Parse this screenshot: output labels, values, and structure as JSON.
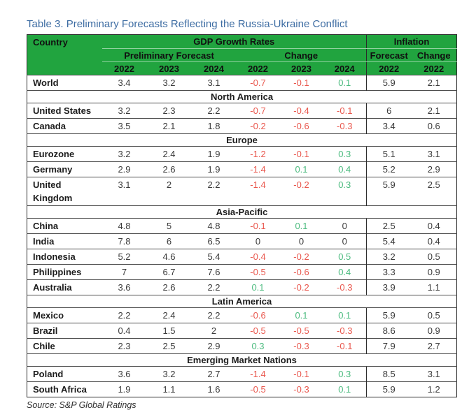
{
  "title": "Table 3. Preliminary Forecasts Reflecting the Russia-Ukraine Conflict",
  "source_note": "Source: S&P Global Ratings",
  "colors": {
    "header_bg": "#21A43F",
    "positive_value": "#4CBB7F",
    "negative_value": "#E9574D",
    "title_text": "#3E6DA3",
    "table_border": "#2b2b2b"
  },
  "table": {
    "header": {
      "country": "Country",
      "gdp_group": "GDP Growth Rates",
      "inflation_group": "Inflation",
      "gdp_sub": {
        "forecast": "Preliminary Forecast",
        "change": "Change"
      },
      "inflation_sub": {
        "forecast": "Forecast",
        "change": "Change"
      },
      "gdp_years": [
        "2022",
        "2023",
        "2024",
        "2022",
        "2023",
        "2024"
      ],
      "inflation_years": [
        "2022",
        "2022"
      ]
    },
    "sections": [
      {
        "name": null,
        "rows": [
          {
            "country": "World",
            "gdp": [
              "3.4",
              "3.2",
              "3.1"
            ],
            "change": [
              {
                "v": "-0.7",
                "c": "neg"
              },
              {
                "v": "-0.1",
                "c": "neg"
              },
              {
                "v": "0.1",
                "c": "pos"
              }
            ],
            "inflation": "5.9",
            "inflation_change": "2.1"
          }
        ]
      },
      {
        "name": "North America",
        "rows": [
          {
            "country": "United States",
            "gdp": [
              "3.2",
              "2.3",
              "2.2"
            ],
            "change": [
              {
                "v": "-0.7",
                "c": "neg"
              },
              {
                "v": "-0.4",
                "c": "neg"
              },
              {
                "v": "-0.1",
                "c": "neg"
              }
            ],
            "inflation": "6",
            "inflation_change": "2.1"
          },
          {
            "country": "Canada",
            "gdp": [
              "3.5",
              "2.1",
              "1.8"
            ],
            "change": [
              {
                "v": "-0.2",
                "c": "neg"
              },
              {
                "v": "-0.6",
                "c": "neg"
              },
              {
                "v": "-0.3",
                "c": "neg"
              }
            ],
            "inflation": "3.4",
            "inflation_change": "0.6"
          }
        ]
      },
      {
        "name": "Europe",
        "rows": [
          {
            "country": "Eurozone",
            "gdp": [
              "3.2",
              "2.4",
              "1.9"
            ],
            "change": [
              {
                "v": "-1.2",
                "c": "neg"
              },
              {
                "v": "-0.1",
                "c": "neg"
              },
              {
                "v": "0.3",
                "c": "pos"
              }
            ],
            "inflation": "5.1",
            "inflation_change": "3.1"
          },
          {
            "country": "Germany",
            "gdp": [
              "2.9",
              "2.6",
              "1.9"
            ],
            "change": [
              {
                "v": "-1.4",
                "c": "neg"
              },
              {
                "v": "0.1",
                "c": "pos"
              },
              {
                "v": "0.4",
                "c": "pos"
              }
            ],
            "inflation": "5.2",
            "inflation_change": "2.9"
          },
          {
            "country": "United Kingdom",
            "gdp": [
              "3.1",
              "2",
              "2.2"
            ],
            "change": [
              {
                "v": "-1.4",
                "c": "neg"
              },
              {
                "v": "-0.2",
                "c": "neg"
              },
              {
                "v": "0.3",
                "c": "pos"
              }
            ],
            "inflation": "5.9",
            "inflation_change": "2.5"
          }
        ]
      },
      {
        "name": "Asia-Pacific",
        "rows": [
          {
            "country": "China",
            "gdp": [
              "4.8",
              "5",
              "4.8"
            ],
            "change": [
              {
                "v": "-0.1",
                "c": "neg"
              },
              {
                "v": "0.1",
                "c": "pos"
              },
              {
                "v": "0",
                "c": "zero"
              }
            ],
            "inflation": "2.5",
            "inflation_change": "0.4"
          },
          {
            "country": "India",
            "gdp": [
              "7.8",
              "6",
              "6.5"
            ],
            "change": [
              {
                "v": "0",
                "c": "zero"
              },
              {
                "v": "0",
                "c": "zero"
              },
              {
                "v": "0",
                "c": "zero"
              }
            ],
            "inflation": "5.4",
            "inflation_change": "0.4"
          },
          {
            "country": "Indonesia",
            "gdp": [
              "5.2",
              "4.6",
              "5.4"
            ],
            "change": [
              {
                "v": "-0.4",
                "c": "neg"
              },
              {
                "v": "-0.2",
                "c": "neg"
              },
              {
                "v": "0.5",
                "c": "pos"
              }
            ],
            "inflation": "3.2",
            "inflation_change": "0.5"
          },
          {
            "country": "Philippines",
            "gdp": [
              "7",
              "6.7",
              "7.6"
            ],
            "change": [
              {
                "v": "-0.5",
                "c": "neg"
              },
              {
                "v": "-0.6",
                "c": "neg"
              },
              {
                "v": "0.4",
                "c": "pos"
              }
            ],
            "inflation": "3.3",
            "inflation_change": "0.9"
          },
          {
            "country": "Australia",
            "gdp": [
              "3.6",
              "2.6",
              "2.2"
            ],
            "change": [
              {
                "v": "0.1",
                "c": "pos"
              },
              {
                "v": "-0.2",
                "c": "neg"
              },
              {
                "v": "-0.3",
                "c": "neg"
              }
            ],
            "inflation": "3.9",
            "inflation_change": "1.1"
          }
        ]
      },
      {
        "name": "Latin America",
        "rows": [
          {
            "country": "Mexico",
            "gdp": [
              "2.2",
              "2.4",
              "2.2"
            ],
            "change": [
              {
                "v": "-0.6",
                "c": "neg"
              },
              {
                "v": "0.1",
                "c": "pos"
              },
              {
                "v": "0.1",
                "c": "pos"
              }
            ],
            "inflation": "5.9",
            "inflation_change": "0.5"
          },
          {
            "country": "Brazil",
            "gdp": [
              "0.4",
              "1.5",
              "2"
            ],
            "change": [
              {
                "v": "-0.5",
                "c": "neg"
              },
              {
                "v": "-0.5",
                "c": "neg"
              },
              {
                "v": "-0.3",
                "c": "neg"
              }
            ],
            "inflation": "8.6",
            "inflation_change": "0.9"
          },
          {
            "country": "Chile",
            "gdp": [
              "2.3",
              "2.5",
              "2.9"
            ],
            "change": [
              {
                "v": "0.3",
                "c": "pos"
              },
              {
                "v": "-0.3",
                "c": "neg"
              },
              {
                "v": "-0.1",
                "c": "neg"
              }
            ],
            "inflation": "7.9",
            "inflation_change": "2.7"
          }
        ]
      },
      {
        "name": "Emerging Market Nations",
        "rows": [
          {
            "country": "Poland",
            "gdp": [
              "3.6",
              "3.2",
              "2.7"
            ],
            "change": [
              {
                "v": "-1.4",
                "c": "neg"
              },
              {
                "v": "-0.1",
                "c": "neg"
              },
              {
                "v": "0.3",
                "c": "pos"
              }
            ],
            "inflation": "8.5",
            "inflation_change": "3.1"
          },
          {
            "country": "South Africa",
            "gdp": [
              "1.9",
              "1.1",
              "1.6"
            ],
            "change": [
              {
                "v": "-0.5",
                "c": "neg"
              },
              {
                "v": "-0.3",
                "c": "neg"
              },
              {
                "v": "0.1",
                "c": "pos"
              }
            ],
            "inflation": "5.9",
            "inflation_change": "1.2"
          }
        ]
      }
    ]
  }
}
